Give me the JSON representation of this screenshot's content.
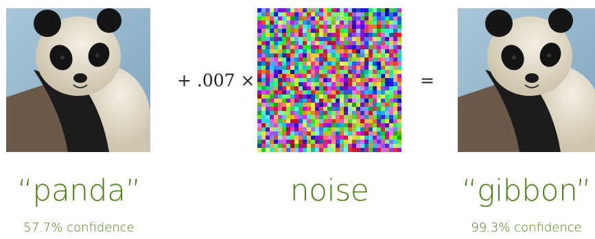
{
  "left": {
    "label": "“panda”",
    "confidence": "57.7% confidence"
  },
  "middle": {
    "operator": "+ .007 ×",
    "label": "noise"
  },
  "equals": "=",
  "right": {
    "label": "“gibbon”",
    "confidence": "99.3% confidence"
  },
  "colors": {
    "label_green": "#4a7f12",
    "operator_text": "#222222"
  },
  "images": {
    "left": "panda-photo",
    "middle": "random-noise-pattern",
    "right": "panda-photo-perturbed"
  }
}
